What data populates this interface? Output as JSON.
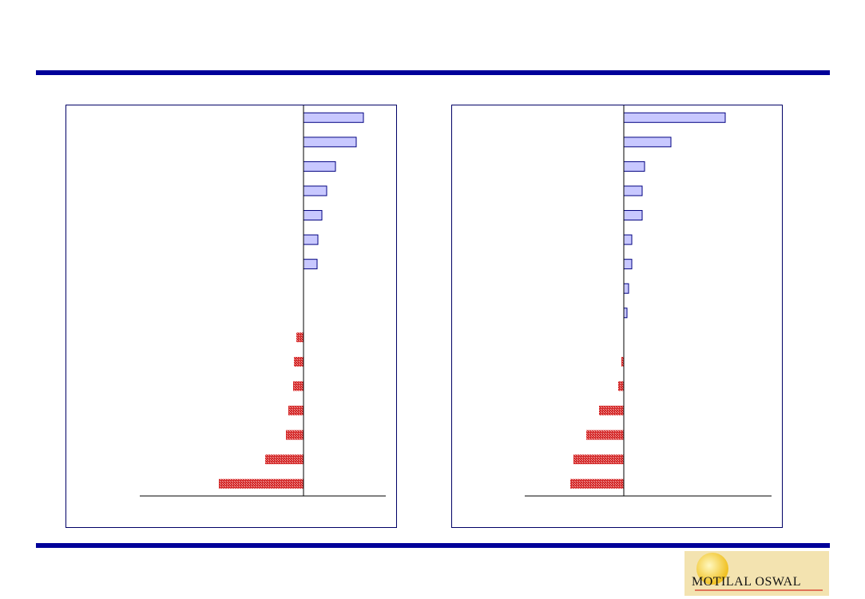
{
  "chart_data": [
    {
      "type": "hbar",
      "categories": [
        null,
        null,
        null,
        null,
        null,
        null,
        null,
        null,
        null,
        null,
        null,
        null,
        null,
        null,
        null,
        null
      ],
      "values": [
        75,
        66,
        40,
        29,
        23,
        18,
        17,
        null,
        null,
        -9,
        -12,
        -13,
        -19,
        -22,
        -48,
        -106
      ],
      "xlim": [
        -205,
        103
      ],
      "color": "#c8c8ff",
      "negative_color": "#e03030"
    },
    {
      "type": "hbar",
      "categories": [
        null,
        null,
        null,
        null,
        null,
        null,
        null,
        null,
        null,
        null,
        null,
        null,
        null,
        null,
        null,
        null
      ],
      "values": [
        127,
        59,
        26,
        23,
        23,
        10,
        10,
        6,
        4,
        null,
        -3,
        -7,
        -31,
        -47,
        -63,
        -67
      ],
      "xlim": [
        -124,
        185
      ],
      "color": "#c8c8ff",
      "negative_color": "#e03030"
    }
  ],
  "logo": {
    "text": "MOTILAL OSWAL"
  }
}
